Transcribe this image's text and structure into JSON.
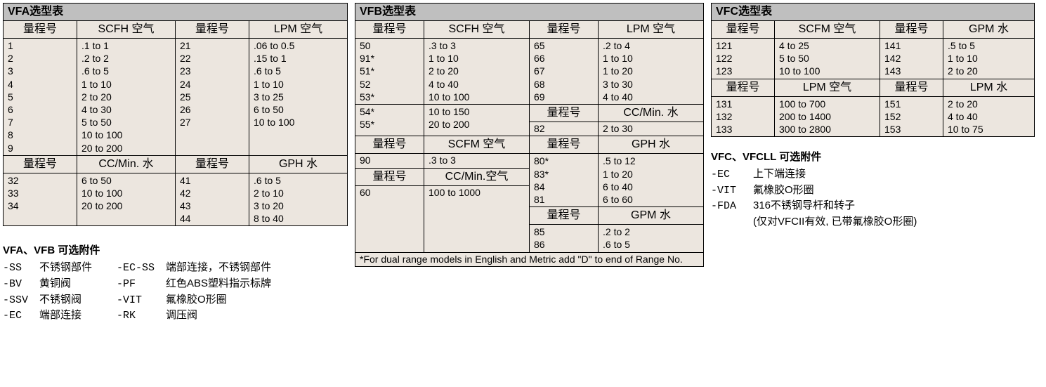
{
  "vfa": {
    "title": "VFA选型表",
    "h_range1": "量程号",
    "h_scfh_air": "SCFH 空气",
    "h_range2": "量程号",
    "h_lpm_air": "LPM 空气",
    "h_range3": "量程号",
    "h_ccmin_water": "CC/Min. 水",
    "h_range4": "量程号",
    "h_gph_water": "GPH 水",
    "left_nums": [
      "1",
      "2",
      "3",
      "4",
      "5",
      "6",
      "7",
      "8",
      "9"
    ],
    "left_vals": [
      ".1 to 1",
      ".2 to 2",
      ".6 to 5",
      "1 to 10",
      "2 to 20",
      "4 to 30",
      "5 to 50",
      "10 to 100",
      "20 to 200"
    ],
    "right_nums": [
      "21",
      "22",
      "23",
      "24",
      "25",
      "26",
      "27",
      "",
      ""
    ],
    "right_vals": [
      ".06 to 0.5",
      ".15 to 1",
      ".6 to 5",
      "1 to 10",
      "3 to 25",
      "6 to 50",
      "10 to 100",
      "",
      ""
    ],
    "bl_nums": [
      "32",
      "33",
      "34",
      ""
    ],
    "bl_vals": [
      "6 to 50",
      "10 to 100",
      "20 to 200",
      ""
    ],
    "br_nums": [
      "41",
      "42",
      "43",
      "44"
    ],
    "br_vals": [
      ".6 to 5",
      "2 to 10",
      "3 to 20",
      "8 to 40"
    ]
  },
  "vfb": {
    "title": "VFB选型表",
    "h_range1": "量程号",
    "h_scfh_air": "SCFH 空气",
    "h_range2": "量程号",
    "h_lpm_air": "LPM 空气",
    "h_range_cc_water": "量程号",
    "h_ccmin_water": "CC/Min. 水",
    "h_scfm_air": "SCFM 空气",
    "h_gph_water": "GPH 水",
    "h_ccmin_air": "CC/Min.空气",
    "h_gpm_water": "GPM 水",
    "l_nums": [
      "50",
      "91*",
      "51*",
      "52",
      "53*",
      "54*",
      "55*"
    ],
    "l_vals": [
      ".3 to 3",
      "1 to 10",
      "2 to 20",
      "4 to 40",
      "10 to 100",
      "10 to 150",
      "20 to 200"
    ],
    "r_nums_top": [
      "65",
      "66",
      "67",
      "68",
      "69"
    ],
    "r_vals_top": [
      ".2 to 4",
      "1 to 10",
      "1 to 20",
      "3 to 30",
      "4 to 40"
    ],
    "cc_water_num": "82",
    "cc_water_val": "2 to 30",
    "scfm_num": "90",
    "scfm_val": ".3 to 3",
    "gph_nums": [
      "80*",
      "83*",
      "84",
      "81"
    ],
    "gph_vals": [
      ".5 to 12",
      "1 to 20",
      "6 to 40",
      "6 to 60"
    ],
    "ccair_num": "60",
    "ccair_val": "100 to 1000",
    "gpm_nums": [
      "85",
      "86"
    ],
    "gpm_vals": [
      ".2 to 2",
      ".6 to 5"
    ],
    "footnote": "*For dual range models in English and Metric add \"D\" to end of Range No."
  },
  "vfc": {
    "title": "VFC选型表",
    "h_range1": "量程号",
    "h_scfm_air": "SCFM 空气",
    "h_range2": "量程号",
    "h_gpm_water": "GPM 水",
    "h_range3": "量程号",
    "h_lpm_air": "LPM 空气",
    "h_range4": "量程号",
    "h_lpm_water": "LPM 水",
    "top_l_nums": [
      "121",
      "122",
      "123"
    ],
    "top_l_vals": [
      "4 to 25",
      "5 to 50",
      "10 to 100"
    ],
    "top_r_nums": [
      "141",
      "142",
      "143"
    ],
    "top_r_vals": [
      ".5 to 5",
      "1 to 10",
      "2 to 20"
    ],
    "bot_l_nums": [
      "131",
      "132",
      "133"
    ],
    "bot_l_vals": [
      "100 to 700",
      "200 to 1400",
      "300 to 2800"
    ],
    "bot_r_nums": [
      "151",
      "152",
      "153"
    ],
    "bot_r_vals": [
      "2 to 20",
      "4 to 40",
      "10 to 75"
    ]
  },
  "acc_ab": {
    "title": "VFA、VFB 可选附件",
    "items_c1": [
      {
        "code": "-SS",
        "desc": "不锈钢部件"
      },
      {
        "code": "-BV",
        "desc": "黄铜阀"
      },
      {
        "code": "-SSV",
        "desc": "不锈钢阀"
      },
      {
        "code": "-EC",
        "desc": "端部连接"
      }
    ],
    "items_c2": [
      {
        "code": "-EC-SS",
        "desc": "端部连接，不锈钢部件"
      },
      {
        "code": "-PF",
        "desc": "红色ABS塑料指示标牌"
      },
      {
        "code": "-VIT",
        "desc": "氟橡胶O形圈"
      },
      {
        "code": "-RK",
        "desc": "调压阀"
      }
    ]
  },
  "acc_c": {
    "title": "VFC、VFCLL 可选附件",
    "items": [
      {
        "code": "-EC",
        "desc": "上下端连接"
      },
      {
        "code": "-VIT",
        "desc": "氟橡胶O形圈"
      },
      {
        "code": "-FDA",
        "desc": "316不锈钢导杆和转子"
      }
    ],
    "sub": "(仅对VFCII有效, 已带氟橡胶O形圈)"
  }
}
